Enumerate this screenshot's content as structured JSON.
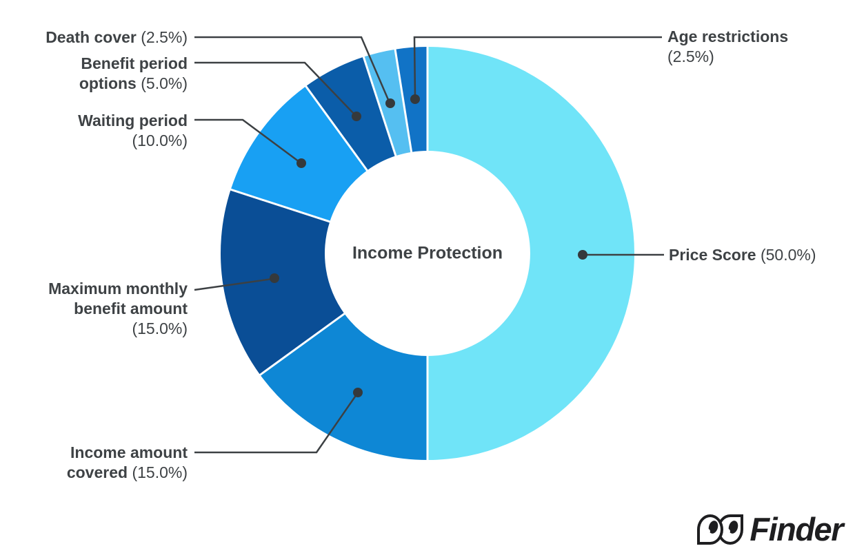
{
  "page": {
    "background": "#FFFFFF",
    "text_color": "#3E4245",
    "leader_line_color": "#3C4043",
    "leader_dot_color": "#35393C"
  },
  "chart_data": {
    "type": "pie",
    "subtype": "donut",
    "title": "Income Protection",
    "center_label": "Income Protection",
    "direction": "clockwise",
    "start_angle_deg": 0,
    "legend_position": "callout-labels",
    "slices": [
      {
        "label": "Price Score",
        "value": 50.0,
        "pct_label": "(50.0%)",
        "display": [
          "Price Score (50.0%)"
        ],
        "color": "#70E4F8"
      },
      {
        "label": "Income amount covered",
        "value": 15.0,
        "pct_label": "(15.0%)",
        "display": [
          "Income amount",
          "covered (15.0%)"
        ],
        "color": "#0E87D5"
      },
      {
        "label": "Maximum monthly benefit amount",
        "value": 15.0,
        "pct_label": "(15.0%)",
        "display": [
          "Maximum monthly",
          "benefit amount",
          "(15.0%)"
        ],
        "color": "#0A4E96"
      },
      {
        "label": "Waiting period",
        "value": 10.0,
        "pct_label": "(10.0%)",
        "display": [
          "Waiting period",
          "(10.0%)"
        ],
        "color": "#18A0F3"
      },
      {
        "label": "Benefit period options",
        "value": 5.0,
        "pct_label": "(5.0%)",
        "display": [
          "Benefit period",
          "options (5.0%)"
        ],
        "color": "#0B5DA9"
      },
      {
        "label": "Death cover",
        "value": 2.5,
        "pct_label": "(2.5%)",
        "display": [
          "Death cover (2.5%)"
        ],
        "color": "#55BFF1"
      },
      {
        "label": "Age restrictions",
        "value": 2.5,
        "pct_label": "(2.5%)",
        "display": [
          "Age restrictions",
          "(2.5%)"
        ],
        "color": "#1173C6"
      }
    ]
  },
  "logo": {
    "brand": "Finder"
  }
}
